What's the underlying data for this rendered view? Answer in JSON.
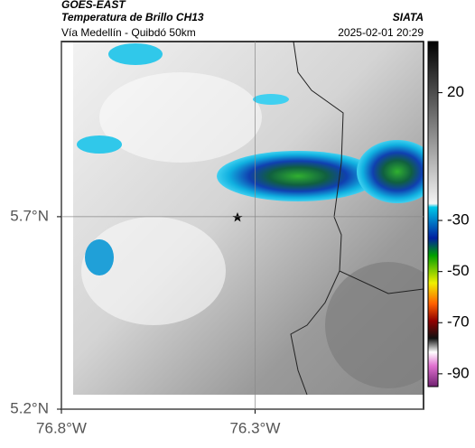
{
  "header": {
    "satellite": "GOES-EAST",
    "product": "Temperatura de Brillo CH13",
    "source": "SIATA",
    "location": "Vía Medellín - Quibdó 50km",
    "datetime": "2025-02-01 20:29"
  },
  "map": {
    "xlim": [
      -76.8,
      -75.865
    ],
    "ylim": [
      5.2,
      6.155
    ],
    "xticks": [
      {
        "value": -76.8,
        "label": "76.8°W"
      },
      {
        "value": -76.3,
        "label": "76.3°W"
      }
    ],
    "yticks": [
      {
        "value": 5.7,
        "label": "5.7°N"
      },
      {
        "value": 5.2,
        "label": "5.2°N"
      }
    ]
  },
  "colorbar": {
    "lim": [
      40,
      -95
    ],
    "ticks": [
      20,
      -30,
      -50,
      -70,
      -90
    ]
  }
}
